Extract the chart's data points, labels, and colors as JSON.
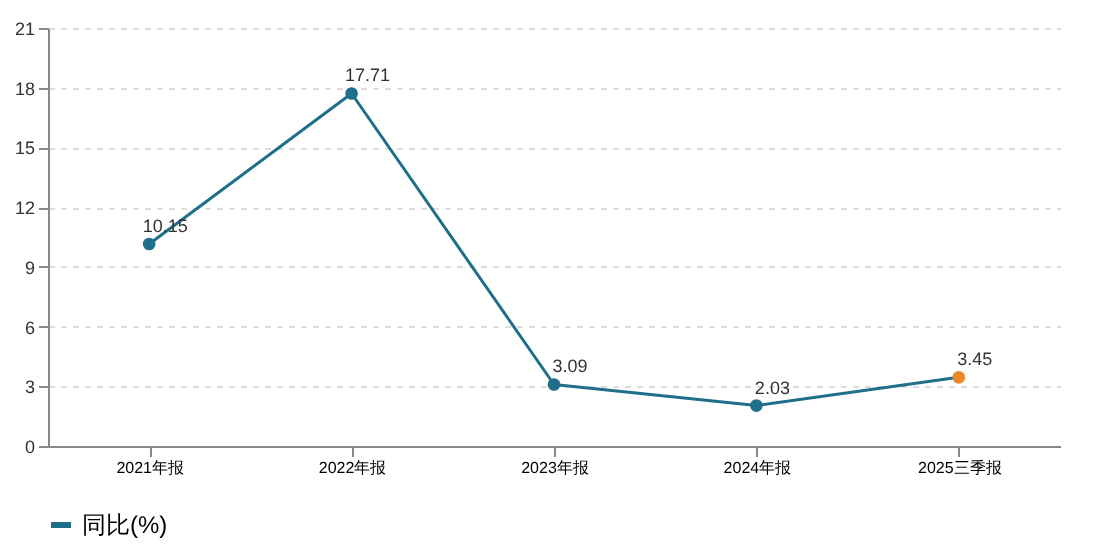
{
  "chart_data": {
    "type": "line",
    "categories": [
      "2021年报",
      "2022年报",
      "2023年报",
      "2024年报",
      "2025三季报"
    ],
    "series": [
      {
        "name": "同比(%)",
        "color": "#1f6f8b",
        "colors": [
          "#1f6f8b",
          "#1f6f8b",
          "#1f6f8b",
          "#1f6f8b",
          "#e8892b"
        ],
        "values": [
          10.15,
          17.71,
          3.09,
          2.03,
          3.45
        ]
      }
    ],
    "ylim": [
      0,
      21
    ],
    "yticks": [
      0,
      3,
      6,
      9,
      12,
      15,
      18,
      21
    ],
    "grid": "y",
    "legend": "bottom",
    "marker": "circle",
    "data_labels": true,
    "line_style": "solid"
  }
}
